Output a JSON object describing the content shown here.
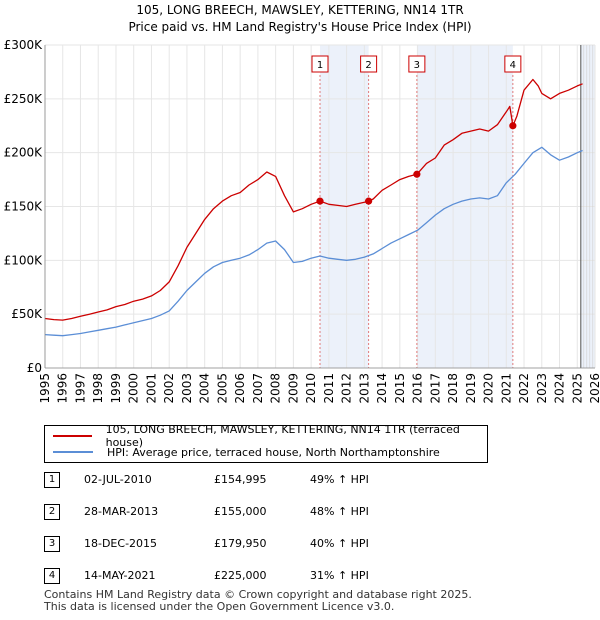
{
  "title_line1": "105, LONG BREECH, MAWSLEY, KETTERING, NN14 1TR",
  "title_line2": "Price paid vs. HM Land Registry's House Price Index (HPI)",
  "colors": {
    "property": "#cc0000",
    "hpi": "#5b8ed6",
    "marker_line": "#e07a7a",
    "shade": "#dce6f5",
    "grid": "#e6e6e6"
  },
  "chart_data": {
    "type": "line",
    "xlim": [
      1995,
      2026
    ],
    "ylim": [
      0,
      300000
    ],
    "y_ticks": [
      {
        "value": 0,
        "label": "£0"
      },
      {
        "value": 50000,
        "label": "£50K"
      },
      {
        "value": 100000,
        "label": "£100K"
      },
      {
        "value": 150000,
        "label": "£150K"
      },
      {
        "value": 200000,
        "label": "£200K"
      },
      {
        "value": 250000,
        "label": "£250K"
      },
      {
        "value": 300000,
        "label": "£300K"
      }
    ],
    "x_ticks": [
      "1995",
      "1996",
      "1997",
      "1998",
      "1999",
      "2000",
      "2001",
      "2002",
      "2003",
      "2004",
      "2005",
      "2006",
      "2007",
      "2008",
      "2009",
      "2010",
      "2011",
      "2012",
      "2013",
      "2014",
      "2015",
      "2016",
      "2017",
      "2018",
      "2019",
      "2020",
      "2021",
      "2022",
      "2023",
      "2024",
      "2025",
      "2026"
    ],
    "shade_ranges": [
      [
        2010.5,
        2013.24
      ],
      [
        2015.96,
        2021.37
      ],
      [
        2025.2,
        2026
      ]
    ],
    "series": [
      {
        "name": "105, LONG BREECH, MAWSLEY, KETTERING, NN14 1TR (terraced house)",
        "x": [
          1995.0,
          1995.5,
          1996.0,
          1996.5,
          1997.0,
          1997.5,
          1998.0,
          1998.5,
          1999.0,
          1999.5,
          2000.0,
          2000.5,
          2001.0,
          2001.5,
          2002.0,
          2002.5,
          2003.0,
          2003.5,
          2004.0,
          2004.5,
          2005.0,
          2005.5,
          2006.0,
          2006.5,
          2007.0,
          2007.5,
          2008.0,
          2008.5,
          2009.0,
          2009.5,
          2010.0,
          2010.5,
          2011.0,
          2011.5,
          2012.0,
          2012.5,
          2013.0,
          2013.24,
          2013.5,
          2014.0,
          2014.5,
          2015.0,
          2015.5,
          2015.96,
          2016.5,
          2017.0,
          2017.5,
          2018.0,
          2018.5,
          2019.0,
          2019.5,
          2020.0,
          2020.5,
          2021.0,
          2021.2,
          2021.37,
          2021.6,
          2022.0,
          2022.5,
          2022.8,
          2023.0,
          2023.5,
          2024.0,
          2024.5,
          2025.0,
          2025.3
        ],
        "values": [
          46000,
          45000,
          44500,
          46000,
          48000,
          50000,
          52000,
          54000,
          57000,
          59000,
          62000,
          64000,
          67000,
          72000,
          80000,
          95000,
          112000,
          125000,
          138000,
          148000,
          155000,
          160000,
          163000,
          170000,
          175000,
          182000,
          178000,
          160000,
          145000,
          148000,
          152000,
          154995,
          152000,
          151000,
          150000,
          152000,
          154000,
          155000,
          157000,
          165000,
          170000,
          175000,
          178000,
          179950,
          190000,
          195000,
          207000,
          212000,
          218000,
          220000,
          222000,
          220000,
          226000,
          238000,
          243000,
          225000,
          234000,
          258000,
          268000,
          262000,
          255000,
          250000,
          255000,
          258000,
          262000,
          264000
        ]
      },
      {
        "name": "HPI: Average price, terraced house, North Northamptonshire",
        "x": [
          1995.0,
          1995.5,
          1996.0,
          1996.5,
          1997.0,
          1997.5,
          1998.0,
          1998.5,
          1999.0,
          1999.5,
          2000.0,
          2000.5,
          2001.0,
          2001.5,
          2002.0,
          2002.5,
          2003.0,
          2003.5,
          2004.0,
          2004.5,
          2005.0,
          2005.5,
          2006.0,
          2006.5,
          2007.0,
          2007.5,
          2008.0,
          2008.5,
          2009.0,
          2009.5,
          2010.0,
          2010.5,
          2011.0,
          2011.5,
          2012.0,
          2012.5,
          2013.0,
          2013.5,
          2014.0,
          2014.5,
          2015.0,
          2015.5,
          2016.0,
          2016.5,
          2017.0,
          2017.5,
          2018.0,
          2018.5,
          2019.0,
          2019.5,
          2020.0,
          2020.5,
          2021.0,
          2021.5,
          2022.0,
          2022.5,
          2023.0,
          2023.5,
          2024.0,
          2024.5,
          2025.0,
          2025.3
        ],
        "values": [
          31000,
          30500,
          30000,
          31000,
          32000,
          33500,
          35000,
          36500,
          38000,
          40000,
          42000,
          44000,
          46000,
          49000,
          53000,
          62000,
          72000,
          80000,
          88000,
          94000,
          98000,
          100000,
          102000,
          105000,
          110000,
          116000,
          118000,
          110000,
          98000,
          99000,
          102000,
          104000,
          102000,
          101000,
          100000,
          101000,
          103000,
          106000,
          111000,
          116000,
          120000,
          124000,
          128000,
          135000,
          142000,
          148000,
          152000,
          155000,
          157000,
          158000,
          157000,
          160000,
          172000,
          180000,
          190000,
          200000,
          205000,
          198000,
          193000,
          196000,
          200000,
          202000
        ]
      }
    ],
    "sale_points": [
      {
        "label": "1",
        "x": 2010.5,
        "value": 154995
      },
      {
        "label": "2",
        "x": 2013.24,
        "value": 155000
      },
      {
        "label": "3",
        "x": 2015.96,
        "value": 179950
      },
      {
        "label": "4",
        "x": 2021.37,
        "value": 225000
      }
    ]
  },
  "legend": {
    "property": "105, LONG BREECH, MAWSLEY, KETTERING, NN14 1TR (terraced house)",
    "hpi": "HPI: Average price, terraced house, North Northamptonshire"
  },
  "sales": [
    {
      "badge": "1",
      "date": "02-JUL-2010",
      "price": "£154,995",
      "hpi": "49% ↑ HPI"
    },
    {
      "badge": "2",
      "date": "28-MAR-2013",
      "price": "£155,000",
      "hpi": "48% ↑ HPI"
    },
    {
      "badge": "3",
      "date": "18-DEC-2015",
      "price": "£179,950",
      "hpi": "40% ↑ HPI"
    },
    {
      "badge": "4",
      "date": "14-MAY-2021",
      "price": "£225,000",
      "hpi": "31% ↑ HPI"
    }
  ],
  "footer_line1": "Contains HM Land Registry data © Crown copyright and database right 2025.",
  "footer_line2": "This data is licensed under the Open Government Licence v3.0."
}
